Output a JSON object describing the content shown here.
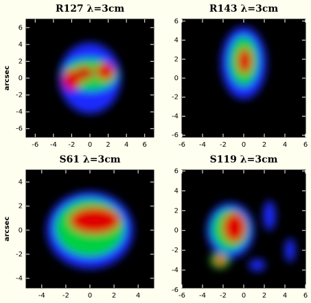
{
  "chart_data": [
    {
      "type": "image",
      "title": "R127 λ=3cm",
      "ylabel": "arcsec",
      "xlim": [
        -7,
        7
      ],
      "ylim": [
        -7,
        7
      ],
      "xticks": [
        -6,
        -4,
        -2,
        0,
        2,
        4,
        6
      ],
      "yticks": [
        -6,
        -4,
        -2,
        0,
        2,
        4,
        6
      ]
    },
    {
      "type": "image",
      "title": "R143 λ=3cm",
      "xlim": [
        -6,
        6
      ],
      "ylim": [
        -6.2,
        6.2
      ],
      "xticks": [
        -6,
        -4,
        -2,
        0,
        2,
        4,
        6
      ],
      "yticks": [
        -6,
        -4,
        -2,
        0,
        2,
        4,
        6
      ]
    },
    {
      "type": "image",
      "title": "S61 λ=3cm",
      "ylabel": "arcsec",
      "xlim": [
        -5.3,
        5.3
      ],
      "ylim": [
        -4.8,
        5
      ],
      "xticks": [
        -4,
        -2,
        0,
        2,
        4
      ],
      "yticks": [
        -4,
        -2,
        0,
        2,
        4
      ]
    },
    {
      "type": "image",
      "title": "S119 λ=3cm",
      "xlim": [
        -6,
        6
      ],
      "ylim": [
        -5.8,
        6.1
      ],
      "xticks": [
        -6,
        -4,
        -2,
        0,
        2,
        4,
        6
      ],
      "yticks": [
        -6,
        -4,
        -2,
        0,
        2,
        4,
        6
      ]
    }
  ]
}
